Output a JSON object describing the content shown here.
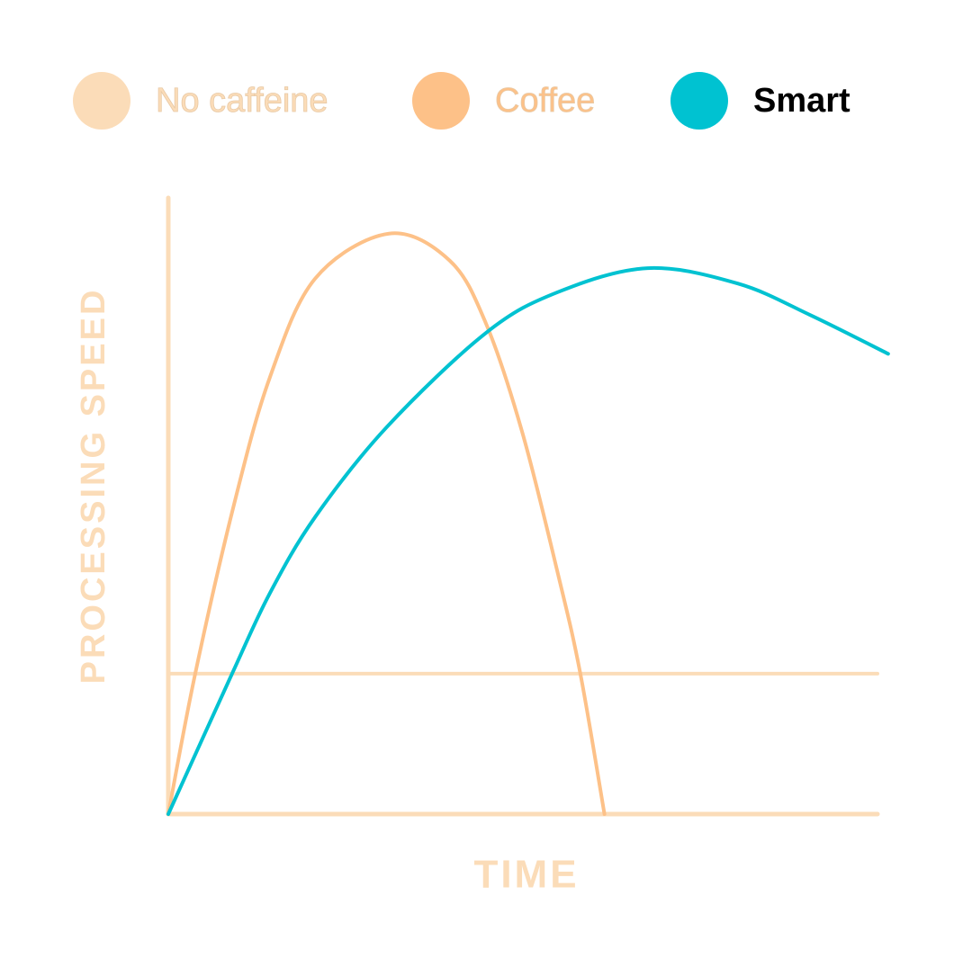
{
  "chart_data": {
    "type": "line",
    "xlabel": "TIME",
    "ylabel": "PROCESSING SPEED",
    "xlim": [
      0,
      100
    ],
    "ylim": [
      0,
      100
    ],
    "series": [
      {
        "name": "No caffeine",
        "color": "#fbdcb8",
        "x": [
          0,
          100
        ],
        "values": [
          22.8,
          22.8
        ]
      },
      {
        "name": "Coffee",
        "color": "#fdc188",
        "x": [
          0,
          3.8,
          9.3,
          14.3,
          20.7,
          31.1,
          39.7,
          44.8,
          49.9,
          55.0,
          58.1,
          61.5
        ],
        "values": [
          0,
          22.8,
          50.4,
          70.8,
          86.9,
          94.2,
          89.8,
          79.6,
          62.0,
          38.7,
          22.8,
          0
        ]
      },
      {
        "name": "Smart",
        "color": "#00c2d1",
        "x": [
          0,
          9.0,
          14.3,
          20.7,
          30.8,
          44.8,
          54.9,
          67.6,
          80.3,
          90.5,
          101.5
        ],
        "values": [
          0,
          22.8,
          35.8,
          48.2,
          62.8,
          78.1,
          84.7,
          88.6,
          86.1,
          81.0,
          74.7
        ]
      }
    ]
  }
}
